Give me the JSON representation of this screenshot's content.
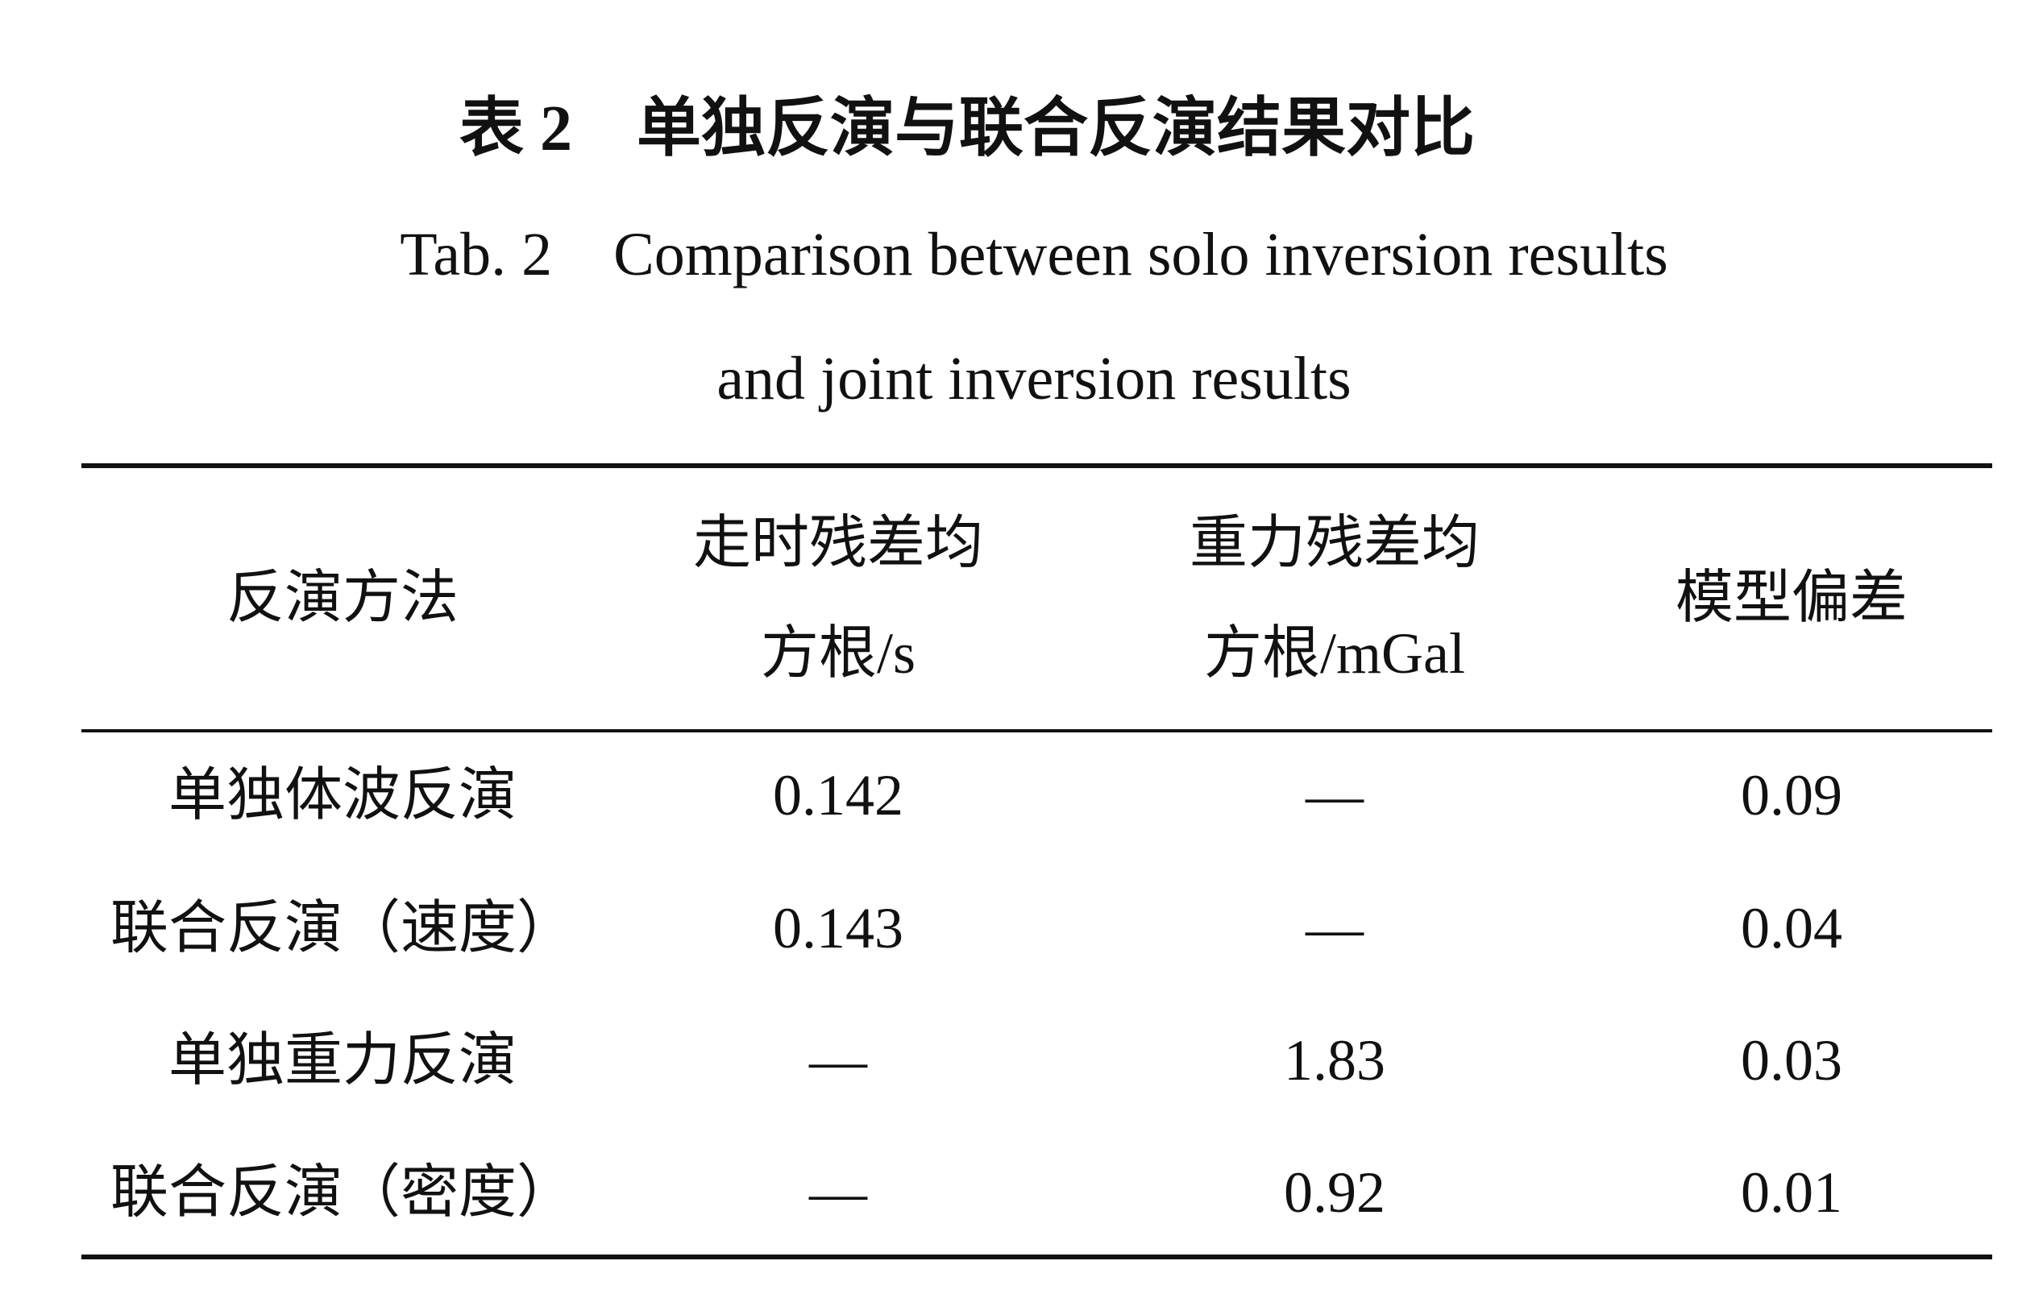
{
  "title": {
    "label": "表 2",
    "text": "单独反演与联合反演结果对比"
  },
  "subtitle": {
    "label": "Tab. 2",
    "lines": [
      "Comparison between solo inversion results",
      "and joint inversion results"
    ]
  },
  "table": {
    "header": [
      [
        "反演方法"
      ],
      [
        "走时残差均",
        "方根/s"
      ],
      [
        "重力残差均",
        "方根/mGal"
      ],
      [
        "模型偏差"
      ]
    ],
    "rows": [
      [
        "单独体波反演",
        "0.142",
        "—",
        "0.09"
      ],
      [
        "联合反演（速度）",
        "0.143",
        "—",
        "0.04"
      ],
      [
        "单独重力反演",
        "—",
        "1.83",
        "0.03"
      ],
      [
        "联合反演（密度）",
        "—",
        "0.92",
        "0.01"
      ]
    ]
  }
}
